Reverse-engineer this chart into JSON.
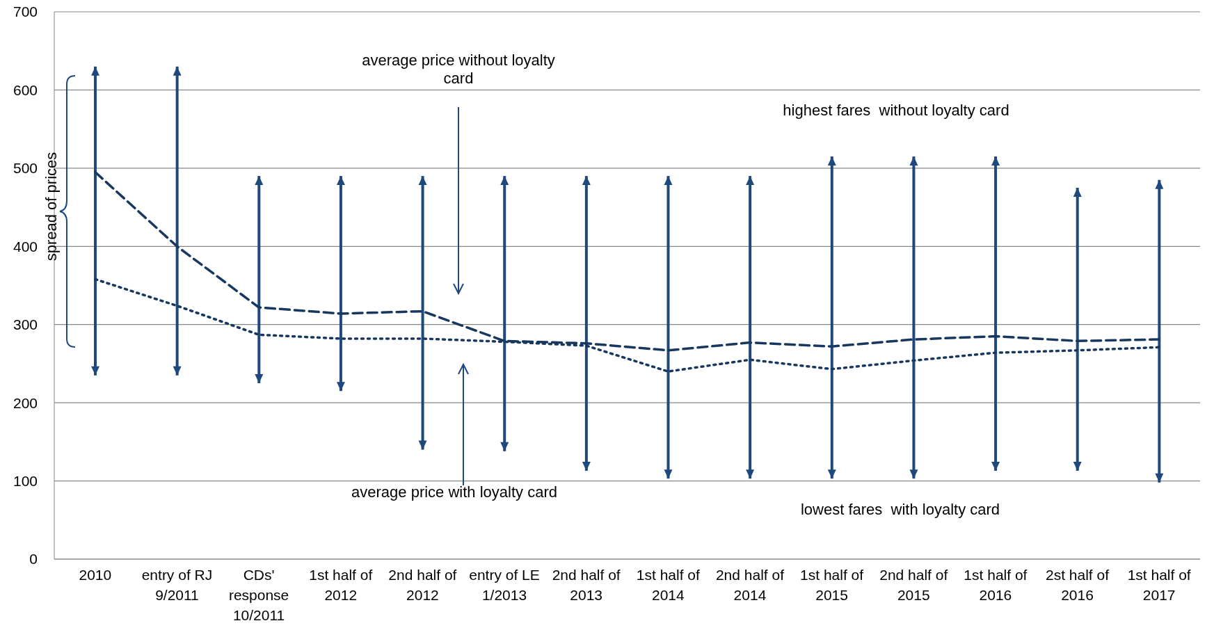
{
  "chart_data": {
    "type": "bar",
    "categories": [
      "2010",
      "entry of RJ 9/2011",
      "CDs' response 10/2011",
      "1st half of 2012",
      "2nd half of 2012",
      "entry of LE 1/2013",
      "2nd half of 2013",
      "1st half of 2014",
      "2nd half of 2014",
      "1st half of 2015",
      "2nd half of 2015",
      "1st half of 2016",
      "2st half of 2016",
      "1st half of 2017"
    ],
    "series": [
      {
        "color": "#1f497d",
        "base": [
          235,
          235,
          225,
          215,
          140,
          138,
          113,
          103,
          103,
          103,
          103,
          113,
          113,
          98
        ],
        "values": [
          395,
          395,
          265,
          275,
          350,
          352,
          377,
          387,
          387,
          412,
          412,
          402,
          362,
          387
        ]
      },
      {
        "color": "#17375e",
        "line_style": "dashed",
        "type": "line",
        "values": [
          495,
          400,
          322,
          314,
          317,
          279,
          276,
          267,
          277,
          272,
          281,
          285,
          279,
          281
        ]
      },
      {
        "color": "#17375e",
        "line_style": "dotted",
        "type": "line",
        "values": [
          358,
          324,
          287,
          282,
          282,
          278,
          273,
          240,
          255,
          243,
          254,
          264,
          267,
          271
        ]
      }
    ],
    "ylim": [
      0,
      700
    ],
    "yticks": [
      0,
      100,
      200,
      300,
      400,
      500,
      600,
      700
    ],
    "grid": "y",
    "annotations": [
      "average price without loyalty card",
      "average price with loyalty card",
      "highest fares  without loyalty card",
      "lowest fares  with loyalty card",
      "spread of prices"
    ]
  }
}
